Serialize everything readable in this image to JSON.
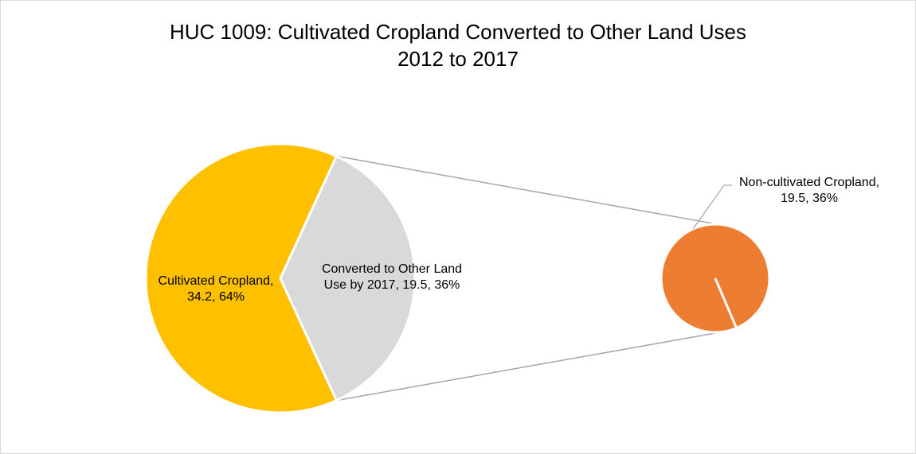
{
  "chart_data": {
    "type": "pie",
    "subtype": "pie-of-pie",
    "title": "HUC 1009: Cultivated Cropland Converted to Other Land Uses",
    "subtitle": "2012 to 2017",
    "main_pie": [
      {
        "name": "Cultivated Cropland",
        "value": 34.2,
        "percent": "64%",
        "color": "#FFC000",
        "label_lines": [
          "Cultivated Cropland,",
          "34.2, 64%"
        ]
      },
      {
        "name": "Converted to Other Land Use by 2017",
        "value": 19.5,
        "percent": "36%",
        "color": "#D9D9D9",
        "label_lines": [
          "Converted to Other Land",
          "Use by 2017, 19.5, 36%"
        ]
      }
    ],
    "secondary_pie": [
      {
        "name": "Non-cultivated Cropland",
        "value": 19.5,
        "percent": "36%",
        "color": "#ED7D31",
        "label_lines": [
          "Non-cultivated Cropland,",
          "19.5, 36%"
        ]
      }
    ],
    "connector_color": "#A6A6A6",
    "legend": "none"
  }
}
